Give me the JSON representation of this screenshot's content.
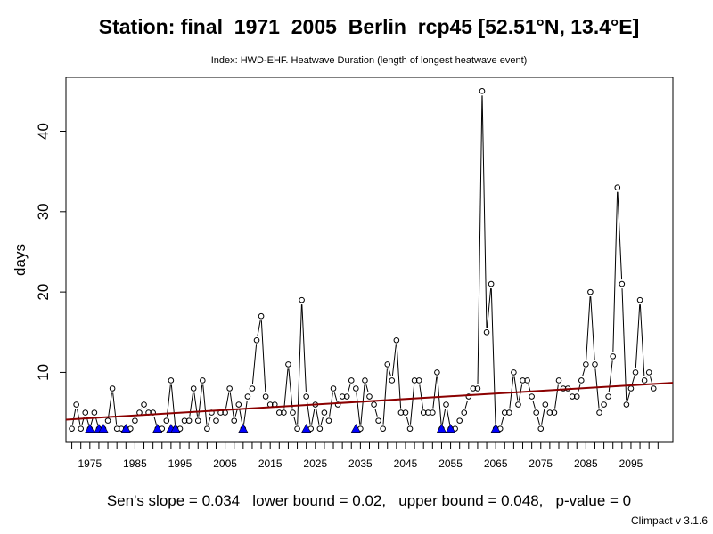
{
  "chart_data": {
    "type": "line",
    "title": "Station: final_1971_2005_Berlin_rcp45 [52.51°N, 13.4°E]",
    "subtitle": "Index: HWD-EHF. Heatwave Duration (length of longest heatwave event)",
    "xlabel": "",
    "ylabel": "days",
    "xlim": [
      1969.7,
      2104.3
    ],
    "ylim": [
      1.3,
      46.7
    ],
    "x_ticks": [
      1975,
      1985,
      1995,
      2005,
      2015,
      2025,
      2035,
      2045,
      2055,
      2065,
      2075,
      2085,
      2095
    ],
    "x_tick_labels": [
      "1975",
      "1985",
      "1995",
      "2005",
      "2015",
      "2025",
      "2035",
      "2045",
      "2055",
      "2065",
      "2075",
      "2085",
      "2095"
    ],
    "x_minor_step": 2,
    "y_ticks": [
      10,
      20,
      30,
      40
    ],
    "y_tick_labels": [
      "10",
      "20",
      "30",
      "40"
    ],
    "x": [
      1971,
      1972,
      1973,
      1974,
      1975,
      1976,
      1977,
      1978,
      1979,
      1980,
      1981,
      1982,
      1983,
      1984,
      1985,
      1986,
      1987,
      1988,
      1989,
      1990,
      1991,
      1992,
      1993,
      1994,
      1995,
      1996,
      1997,
      1998,
      1999,
      2000,
      2001,
      2002,
      2003,
      2004,
      2005,
      2006,
      2007,
      2008,
      2009,
      2010,
      2011,
      2012,
      2013,
      2014,
      2015,
      2016,
      2017,
      2018,
      2019,
      2020,
      2021,
      2022,
      2023,
      2024,
      2025,
      2026,
      2027,
      2028,
      2029,
      2030,
      2031,
      2032,
      2033,
      2034,
      2035,
      2036,
      2037,
      2038,
      2039,
      2040,
      2041,
      2042,
      2043,
      2044,
      2045,
      2046,
      2047,
      2048,
      2049,
      2050,
      2051,
      2052,
      2053,
      2054,
      2055,
      2056,
      2057,
      2058,
      2059,
      2060,
      2061,
      2062,
      2063,
      2064,
      2065,
      2066,
      2067,
      2068,
      2069,
      2070,
      2071,
      2072,
      2073,
      2074,
      2075,
      2076,
      2077,
      2078,
      2079,
      2080,
      2081,
      2082,
      2083,
      2084,
      2085,
      2086,
      2087,
      2088,
      2089,
      2090,
      2091,
      2092,
      2093,
      2094,
      2095,
      2096,
      2097,
      2098,
      2099,
      2100
    ],
    "values": [
      3,
      6,
      3,
      5,
      3,
      5,
      3,
      3,
      4,
      8,
      3,
      3,
      3,
      3,
      4,
      5,
      6,
      5,
      5,
      3,
      3,
      4,
      9,
      3,
      3,
      4,
      4,
      8,
      4,
      9,
      3,
      5,
      4,
      5,
      5,
      8,
      4,
      6,
      3,
      7,
      8,
      14,
      17,
      7,
      6,
      6,
      5,
      5,
      11,
      5,
      3,
      19,
      7,
      3,
      6,
      3,
      5,
      4,
      8,
      6,
      7,
      7,
      9,
      8,
      3,
      9,
      7,
      6,
      4,
      3,
      11,
      9,
      14,
      5,
      5,
      3,
      9,
      9,
      5,
      5,
      5,
      10,
      3,
      6,
      3,
      3,
      4,
      5,
      7,
      8,
      8,
      45,
      15,
      21,
      3,
      3,
      5,
      5,
      10,
      6,
      9,
      9,
      7,
      5,
      3,
      6,
      5,
      5,
      9,
      8,
      8,
      7,
      7,
      9,
      11,
      20,
      11,
      5,
      6,
      7,
      12,
      33,
      21,
      6,
      8,
      10,
      19,
      9,
      10,
      8
    ],
    "trend": {
      "intercept_at_xmin": 4.13,
      "slope": 0.034
    },
    "missing_markers_x": [
      1975,
      1977,
      1978,
      1983,
      1990,
      1993,
      1994,
      2009,
      2023,
      2034,
      2053,
      2055,
      2065
    ],
    "missing_markers_y": 3,
    "colors": {
      "line": "#000000",
      "points": "#000000",
      "trend": "#8b0000",
      "missing": "#0000ff"
    },
    "grid": false
  },
  "stats_text": "Sen's slope = 0.034   lower bound = 0.02,   upper bound = 0.048,   p-value = 0",
  "footer_text": "Climpact v 3.1.6"
}
